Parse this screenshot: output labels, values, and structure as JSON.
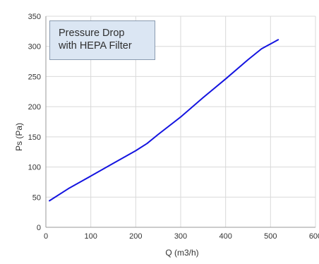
{
  "chart_data": {
    "type": "line",
    "title": "",
    "xlabel": "Q (m3/h)",
    "ylabel": "Ps (Pa)",
    "xlim": [
      0,
      600
    ],
    "ylim": [
      0,
      350
    ],
    "x_ticks": [
      0,
      100,
      200,
      300,
      400,
      500,
      600
    ],
    "y_ticks": [
      0,
      50,
      100,
      150,
      200,
      250,
      300,
      350
    ],
    "grid": true,
    "annotation": {
      "line1": "Pressure Drop",
      "line2": "with HEPA Filter",
      "placement": "top-left"
    },
    "series": [
      {
        "color": "#1414e0",
        "x": [
          8,
          50,
          100,
          150,
          200,
          225,
          250,
          300,
          350,
          400,
          450,
          480,
          517
        ],
        "y": [
          44,
          64,
          85,
          106,
          127,
          139,
          154,
          183,
          215,
          246,
          278,
          296,
          311
        ]
      }
    ]
  }
}
